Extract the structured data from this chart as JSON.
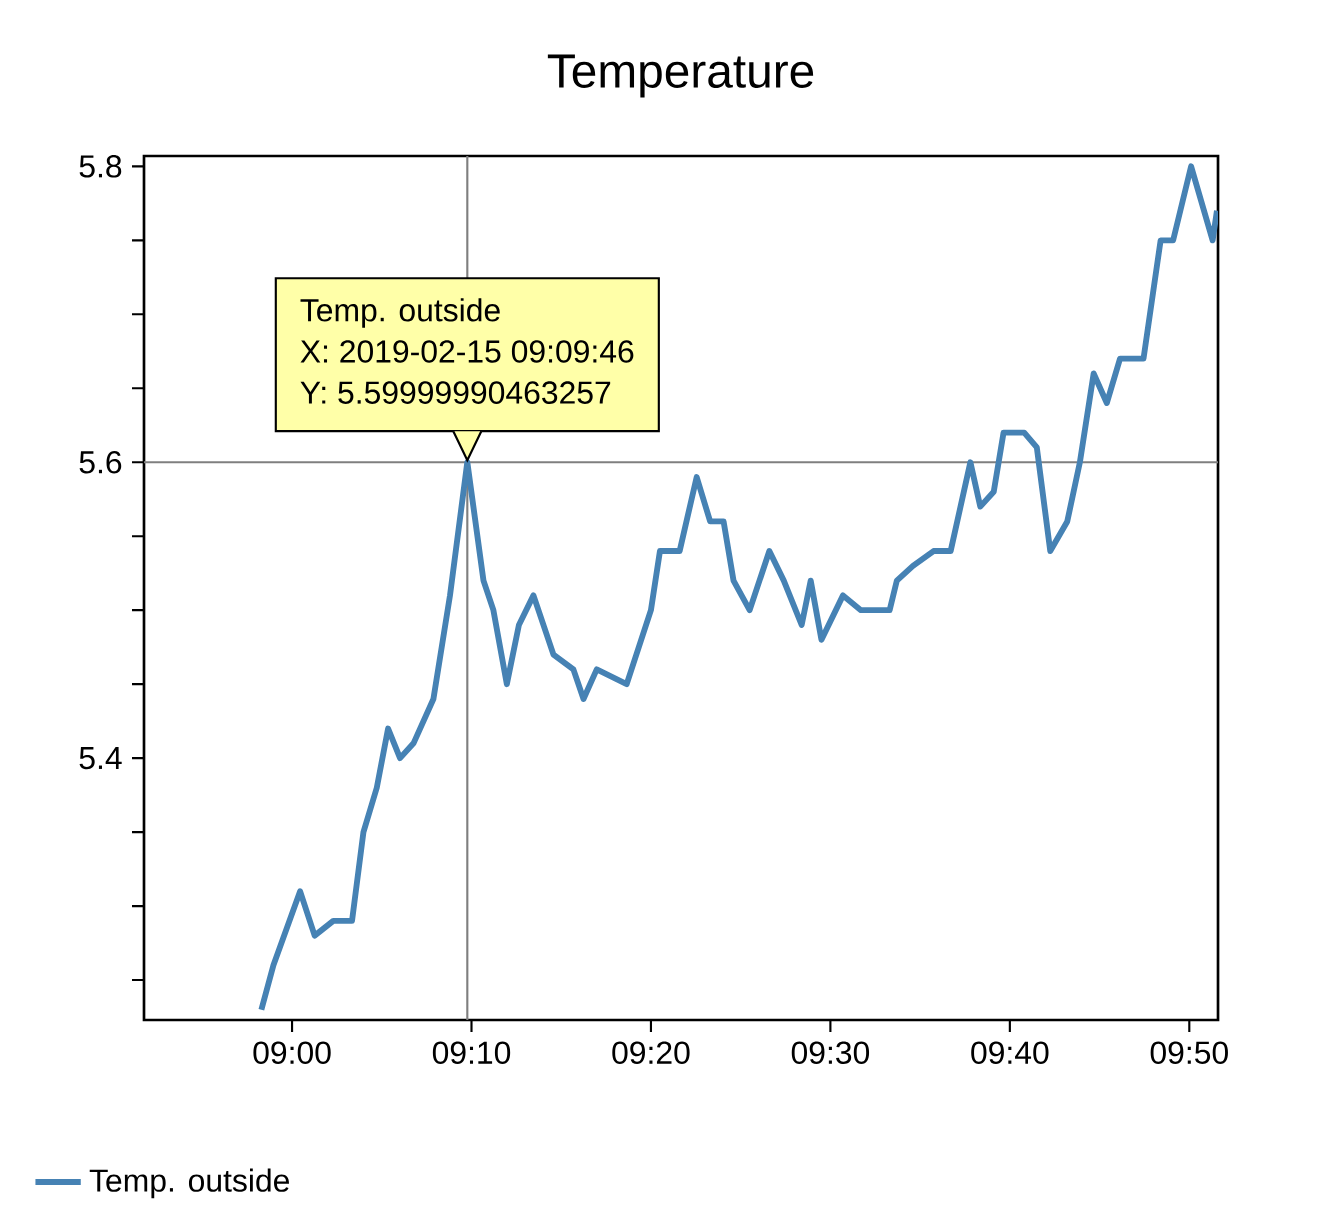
{
  "chart_data": {
    "type": "line",
    "title": "Temperature",
    "x": [
      8.9715,
      8.9827,
      9.0075,
      9.021,
      9.0383,
      9.0557,
      9.0663,
      9.0787,
      9.0892,
      9.1003,
      9.1128,
      9.1313,
      9.1467,
      9.16278,
      9.1778,
      9.187,
      9.1995,
      9.2107,
      9.2242,
      9.2428,
      9.2613,
      9.2707,
      9.283,
      9.3108,
      9.3333,
      9.3417,
      9.36,
      9.3758,
      9.3883,
      9.4008,
      9.41,
      9.425,
      9.4433,
      9.4567,
      9.4733,
      9.4817,
      9.4917,
      9.5117,
      9.5283,
      9.555,
      9.5617,
      9.5767,
      9.5958,
      9.6117,
      9.63,
      9.6392,
      9.6517,
      9.6608,
      9.68,
      9.6917,
      9.7042,
      9.72,
      9.7317,
      9.7445,
      9.7567,
      9.769,
      9.7908,
      9.8067,
      9.8183,
      9.835,
      9.855,
      9.859
    ],
    "series": [
      {
        "name": "Temp. outside",
        "color": "#4682b4",
        "values": [
          5.23,
          5.26,
          5.31,
          5.28,
          5.29,
          5.29,
          5.35,
          5.38,
          5.42,
          5.4,
          5.41,
          5.44,
          5.51,
          5.6,
          5.52,
          5.5,
          5.45,
          5.49,
          5.51,
          5.47,
          5.46,
          5.44,
          5.46,
          5.45,
          5.5,
          5.54,
          5.54,
          5.59,
          5.56,
          5.56,
          5.52,
          5.5,
          5.54,
          5.52,
          5.49,
          5.52,
          5.48,
          5.51,
          5.5,
          5.5,
          5.52,
          5.53,
          5.54,
          5.54,
          5.6,
          5.57,
          5.58,
          5.62,
          5.62,
          5.61,
          5.54,
          5.56,
          5.6,
          5.66,
          5.64,
          5.67,
          5.67,
          5.75,
          5.75,
          5.8,
          5.75,
          5.77
        ]
      }
    ],
    "xlim": [
      8.8625,
      9.86
    ],
    "ylim": [
      5.223,
      5.807
    ],
    "xticks": [
      {
        "value": 9.0,
        "label": "09:00"
      },
      {
        "value": 9.16667,
        "label": "09:10"
      },
      {
        "value": 9.33333,
        "label": "09:20"
      },
      {
        "value": 9.5,
        "label": "09:30"
      },
      {
        "value": 9.66667,
        "label": "09:40"
      },
      {
        "value": 9.83333,
        "label": "09:50"
      }
    ],
    "yticks": [
      {
        "value": 5.25,
        "label": null
      },
      {
        "value": 5.3,
        "label": null
      },
      {
        "value": 5.35,
        "label": null
      },
      5.4,
      {
        "value": 5.45,
        "label": null
      },
      {
        "value": 5.5,
        "label": null
      },
      {
        "value": 5.55,
        "label": null
      },
      5.6,
      {
        "value": 5.65,
        "label": null
      },
      {
        "value": 5.7,
        "label": null
      },
      {
        "value": 5.75,
        "label": null
      },
      5.8
    ],
    "ref_lines": [
      {
        "axis": "x",
        "value": 9.16278,
        "color": "#7f7f7f"
      },
      {
        "axis": "y",
        "value": 5.6,
        "color": "#7f7f7f"
      }
    ],
    "annotations": [
      "Temp. outside",
      "X: 2019-02-15 09:09:46",
      "Y: 5.59999990463257"
    ],
    "legend": "bottom"
  }
}
